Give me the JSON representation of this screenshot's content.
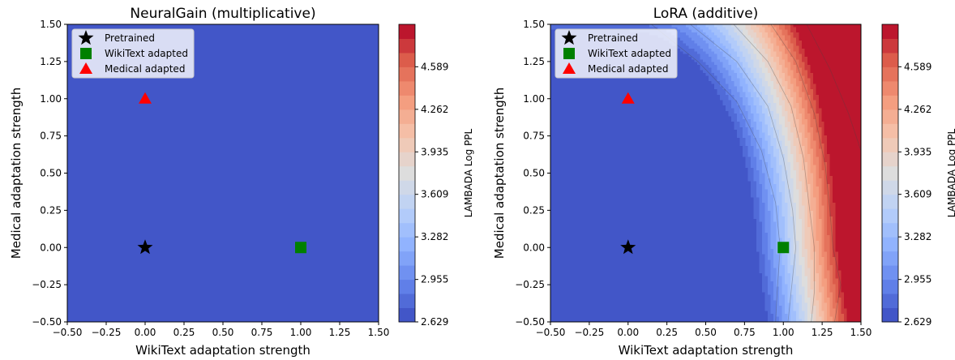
{
  "chart_data": [
    {
      "type": "contour",
      "title": "NeuralGain (multiplicative)",
      "xlabel": "WikiText adaptation strength",
      "ylabel": "Medical adaptation strength",
      "xlim": [
        -0.5,
        1.5
      ],
      "ylim": [
        -0.5,
        1.5
      ],
      "xticks": [
        "−0.50",
        "−0.25",
        "0.00",
        "0.25",
        "0.50",
        "0.75",
        "1.00",
        "1.25",
        "1.50"
      ],
      "yticks": [
        "−0.50",
        "−0.25",
        "0.00",
        "0.25",
        "0.50",
        "0.75",
        "1.00",
        "1.25",
        "1.50"
      ],
      "field_value": 2.629,
      "colorbar": {
        "label": "LAMBADA Log PPL",
        "min": 2.629,
        "max": 4.915,
        "ticks": [
          "2.629",
          "2.955",
          "3.282",
          "3.609",
          "3.935",
          "4.262",
          "4.589"
        ],
        "colormap": "coolwarm"
      },
      "legend": {
        "position": "top-left",
        "entries": [
          {
            "label": "Pretrained",
            "marker": "star",
            "color": "#000000"
          },
          {
            "label": "WikiText adapted",
            "marker": "square",
            "color": "#008000"
          },
          {
            "label": "Medical adapted",
            "marker": "triangle",
            "color": "#ff0000"
          }
        ]
      },
      "points": [
        {
          "name": "Pretrained",
          "x": 0.0,
          "y": 0.0
        },
        {
          "name": "WikiText adapted",
          "x": 1.0,
          "y": 0.0
        },
        {
          "name": "Medical adapted",
          "x": 0.0,
          "y": 1.0
        }
      ]
    },
    {
      "type": "contour",
      "title": "LoRA (additive)",
      "xlabel": "WikiText adaptation strength",
      "ylabel": "Medical adaptation strength",
      "xlim": [
        -0.5,
        1.5
      ],
      "ylim": [
        -0.5,
        1.5
      ],
      "xticks": [
        "−0.50",
        "−0.25",
        "0.00",
        "0.25",
        "0.50",
        "0.75",
        "1.00",
        "1.25",
        "1.50"
      ],
      "yticks": [
        "−0.50",
        "−0.25",
        "0.00",
        "0.25",
        "0.50",
        "0.75",
        "1.00",
        "1.25",
        "1.50"
      ],
      "colorbar": {
        "label": "LAMBADA Log PPL",
        "min": 2.629,
        "max": 4.915,
        "ticks": [
          "2.629",
          "2.955",
          "3.282",
          "3.609",
          "3.935",
          "4.262",
          "4.589"
        ],
        "colormap": "coolwarm"
      },
      "legend": {
        "position": "top-left",
        "entries": [
          {
            "label": "Pretrained",
            "marker": "star",
            "color": "#000000"
          },
          {
            "label": "WikiText adapted",
            "marker": "square",
            "color": "#008000"
          },
          {
            "label": "Medical adapted",
            "marker": "triangle",
            "color": "#ff0000"
          }
        ]
      },
      "points": [
        {
          "name": "Pretrained",
          "x": 0.0,
          "y": 0.0
        },
        {
          "name": "WikiText adapted",
          "x": 1.0,
          "y": 0.0
        },
        {
          "name": "Medical adapted",
          "x": 0.0,
          "y": 1.0
        }
      ],
      "contour_levels": 21,
      "iso_contours": [
        {
          "level": 2.75,
          "points": [
            [
              0.15,
              1.5
            ],
            [
              0.45,
              1.25
            ],
            [
              0.7,
              0.98
            ],
            [
              0.86,
              0.65
            ],
            [
              0.95,
              0.3
            ],
            [
              0.98,
              0.0
            ],
            [
              0.96,
              -0.3
            ],
            [
              0.95,
              -0.5
            ]
          ]
        },
        {
          "level": 3.1,
          "points": [
            [
              0.4,
              1.5
            ],
            [
              0.7,
              1.25
            ],
            [
              0.9,
              0.95
            ],
            [
              1.0,
              0.6
            ],
            [
              1.06,
              0.25
            ],
            [
              1.08,
              0.0
            ],
            [
              1.05,
              -0.3
            ],
            [
              1.03,
              -0.5
            ]
          ]
        },
        {
          "level": 3.5,
          "points": [
            [
              0.68,
              1.5
            ],
            [
              0.9,
              1.25
            ],
            [
              1.05,
              0.95
            ],
            [
              1.13,
              0.6
            ],
            [
              1.17,
              0.25
            ],
            [
              1.2,
              0.0
            ],
            [
              1.2,
              -0.3
            ],
            [
              1.18,
              -0.5
            ]
          ]
        },
        {
          "level": 4.0,
          "points": [
            [
              0.92,
              1.5
            ],
            [
              1.08,
              1.25
            ],
            [
              1.2,
              0.9
            ],
            [
              1.27,
              0.55
            ],
            [
              1.3,
              0.25
            ],
            [
              1.32,
              0.0
            ],
            [
              1.37,
              -0.25
            ],
            [
              1.33,
              -0.5
            ]
          ]
        },
        {
          "level": 4.7,
          "points": [
            [
              1.15,
              1.5
            ],
            [
              1.3,
              1.2
            ],
            [
              1.42,
              0.9
            ],
            [
              1.5,
              0.65
            ]
          ]
        }
      ]
    }
  ]
}
